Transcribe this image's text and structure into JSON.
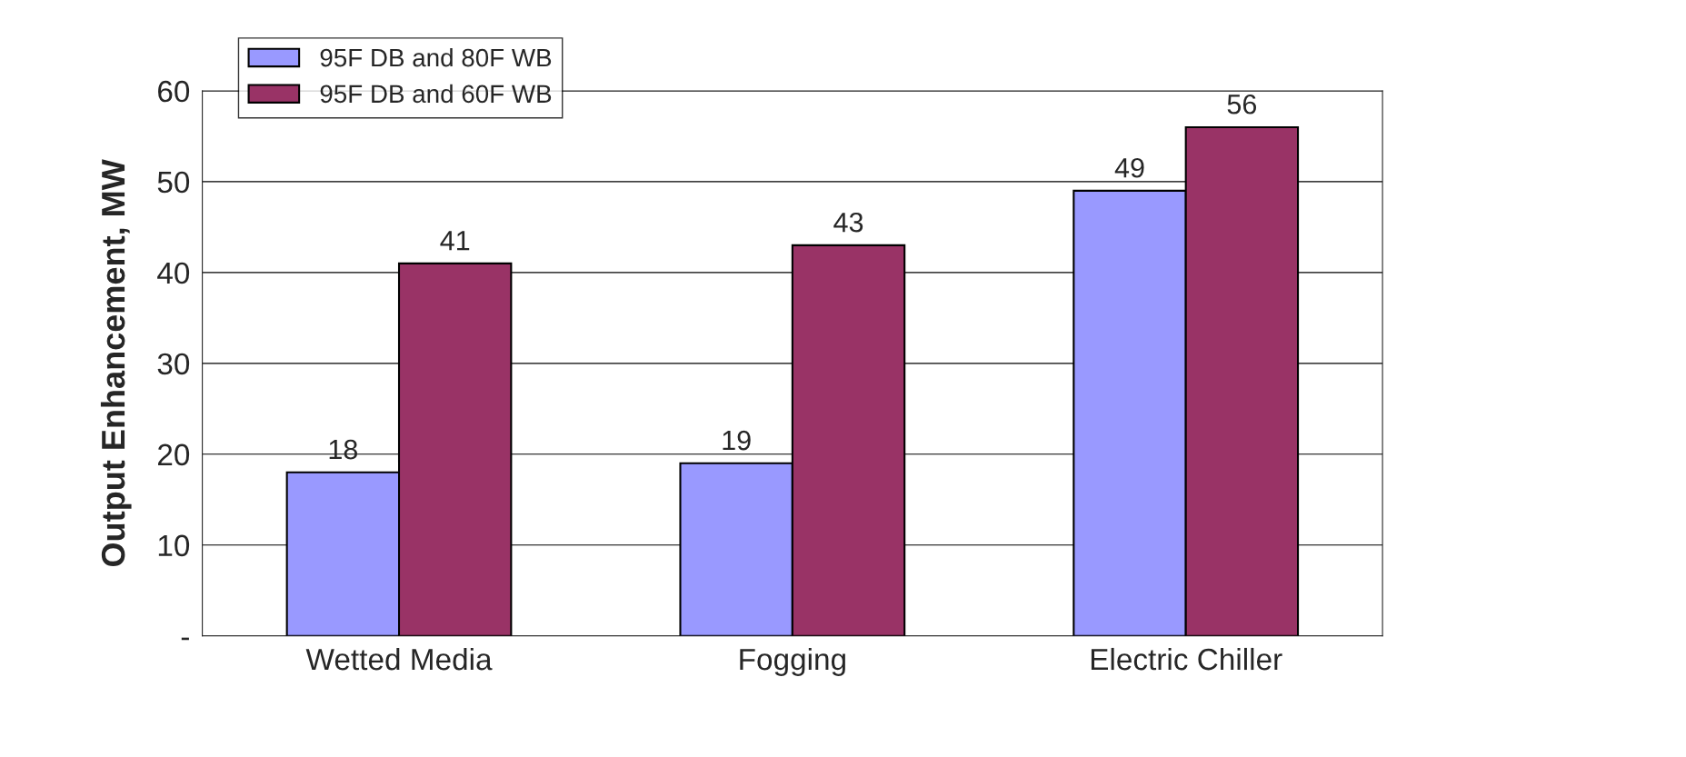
{
  "chart_data": {
    "type": "bar",
    "ylabel": "Output Enhancement, MW",
    "categories": [
      "Wetted Media",
      "Fogging",
      "Electric Chiller"
    ],
    "series": [
      {
        "name": "95F DB and 80F WB",
        "color": "#9999ff",
        "values": [
          18,
          19,
          49
        ]
      },
      {
        "name": "95F DB and 60F WB",
        "color": "#993366",
        "values": [
          41,
          43,
          56
        ]
      }
    ],
    "ylim": [
      0,
      60
    ],
    "yticks": [
      {
        "value": 0,
        "label": "-"
      },
      10,
      20,
      30,
      40,
      50,
      60
    ],
    "grid": "y",
    "legend": "top left",
    "data_labels": true
  }
}
